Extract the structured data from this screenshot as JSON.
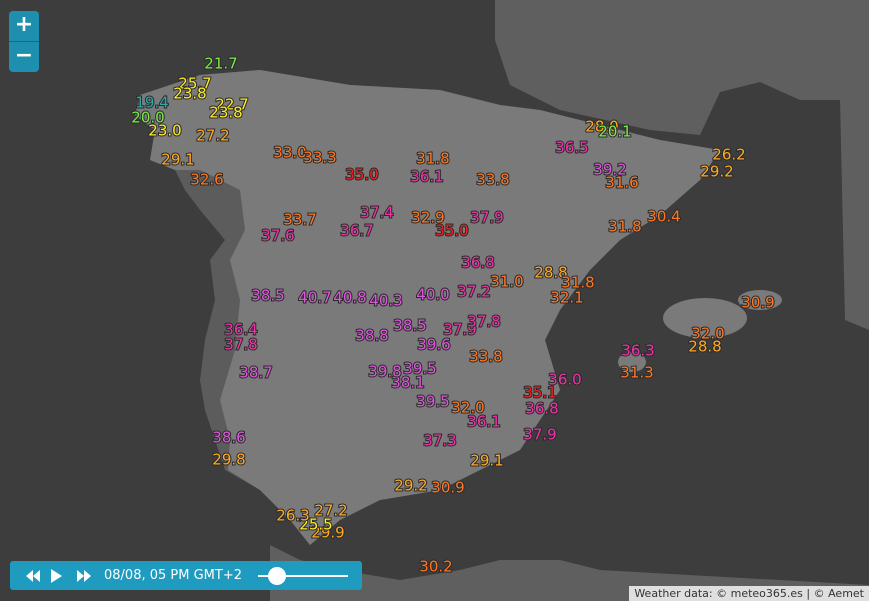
{
  "controls": {
    "zoom_in": "+",
    "zoom_out": "−"
  },
  "player": {
    "time": "08/08, 05 PM GMT+2"
  },
  "attribution": "Weather data: © meteo365.es | © Aemet",
  "temperatures": [
    "21.7",
    "25.7",
    "23.8",
    "19.4",
    "20.0",
    "23.0",
    "22.7",
    "23.8",
    "27.2",
    "29.1",
    "32.6",
    "33.0",
    "33.3",
    "35.0",
    "31.8",
    "33.8",
    "36.1",
    "37.4",
    "32.9",
    "35.0",
    "37.9",
    "36.8",
    "31.0",
    "28.8",
    "31.8",
    "32.1",
    "37.2",
    "40.0",
    "40.3",
    "38.5",
    "37.9",
    "37.8",
    "39.6",
    "38.8",
    "38.1",
    "39.5",
    "39.8",
    "36.7",
    "37.6",
    "33.7",
    "28.0",
    "20.1",
    "36.5",
    "39.2",
    "31.6",
    "30.4",
    "29.2",
    "26.2",
    "31.8",
    "30.9",
    "32.0",
    "28.8",
    "36.3",
    "31.3",
    "30.2",
    "29.9",
    "25.5",
    "27.2",
    "26.3",
    "29.2",
    "30.9",
    "29.1",
    "37.9",
    "37.3",
    "36.1",
    "38.6",
    "29.8",
    "36.4",
    "37.8",
    "38.7",
    "40.7",
    "40.8",
    "38.5",
    "32.0",
    "39.5",
    "33.8",
    "36.0",
    "35.1",
    "36.8"
  ]
}
